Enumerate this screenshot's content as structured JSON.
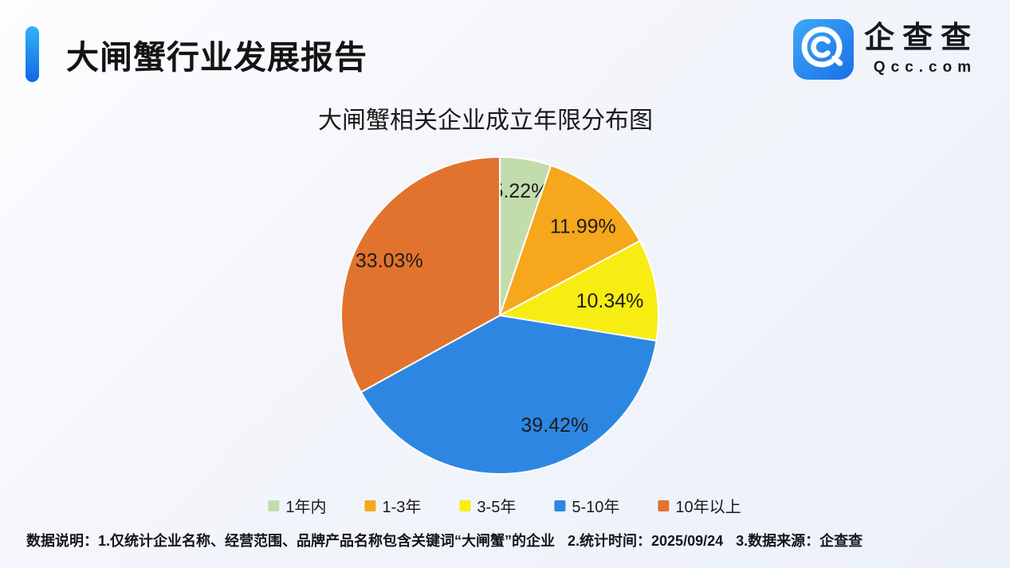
{
  "header": {
    "title": "大闸蟹行业发展报告"
  },
  "brand": {
    "name": "企查查",
    "domain": "Qcc.com",
    "icon": "qcc-magnifier-logo"
  },
  "chart_data": {
    "type": "pie",
    "title": "大闸蟹相关企业成立年限分布图",
    "categories": [
      "1年内",
      "1-3年",
      "3-5年",
      "5-10年",
      "10年以上"
    ],
    "values": [
      5.22,
      11.99,
      10.34,
      39.42,
      33.03
    ],
    "labels": [
      "5.22%",
      "11.99%",
      "10.34%",
      "39.42%",
      "33.03%"
    ],
    "colors": [
      "#C3DCAE",
      "#F6A71B",
      "#F8ED12",
      "#2D87E2",
      "#E2732E"
    ],
    "start_angle_deg": 0,
    "direction": "clockwise",
    "legend_position": "bottom"
  },
  "footnote": {
    "prefix": "数据说明：",
    "notes": [
      "1.仅统计企业名称、经营范围、品牌产品名称包含关键词“大闸蟹”的企业",
      "2.统计时间：2025/09/24",
      "3.数据来源：企查查"
    ]
  }
}
